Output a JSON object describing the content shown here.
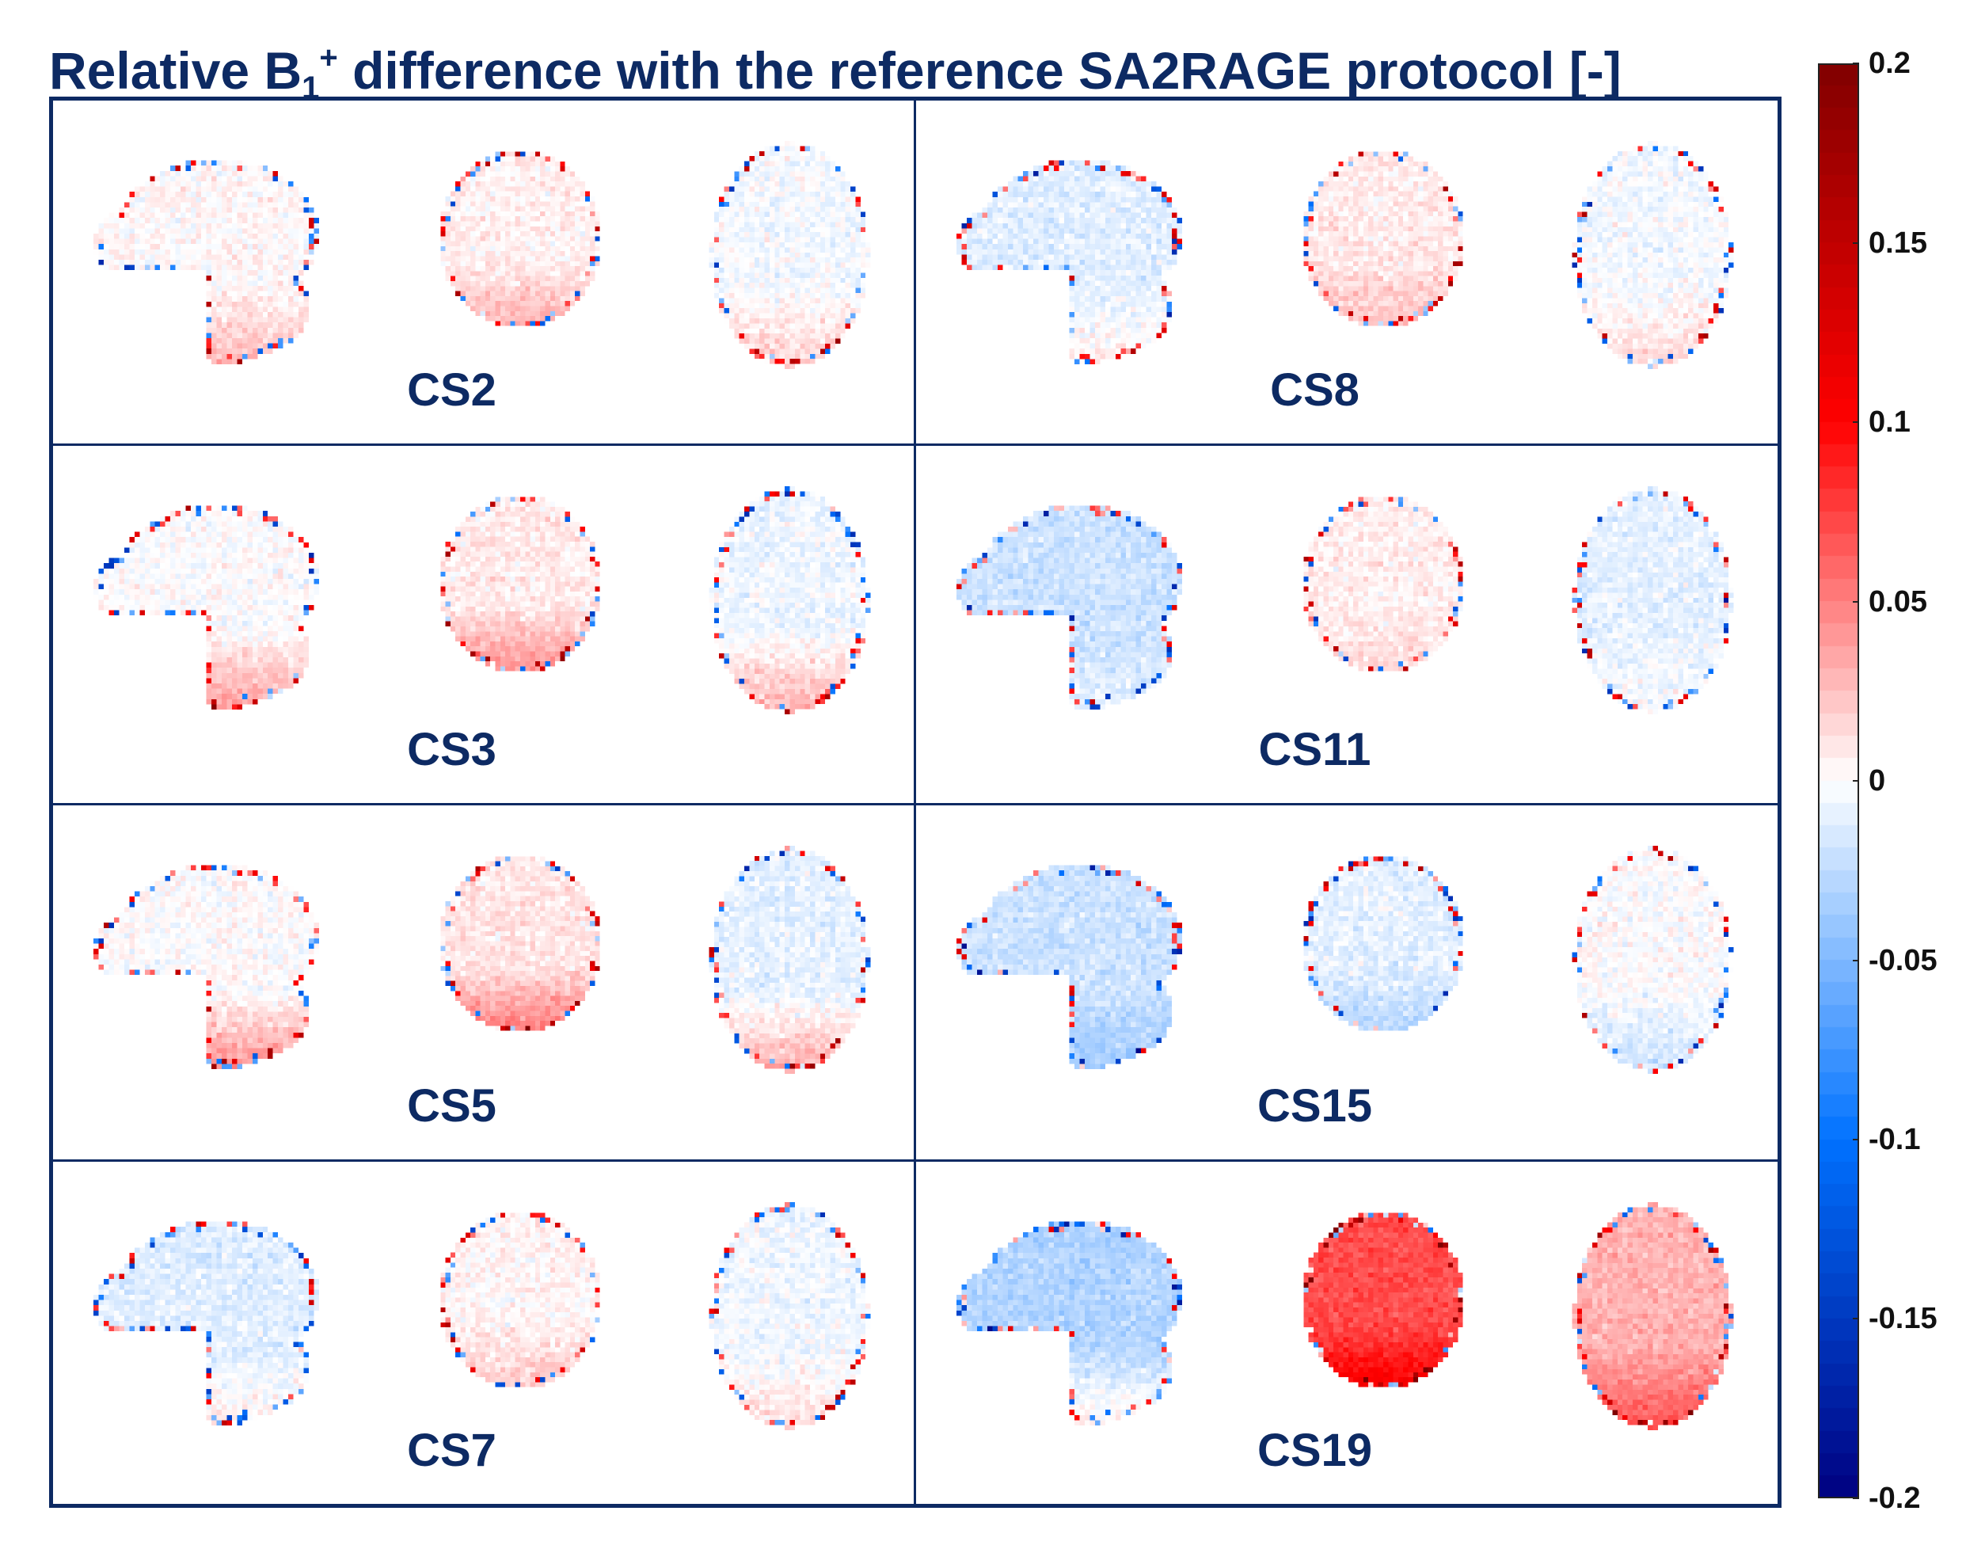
{
  "title": {
    "prefix": "Relative B",
    "subscript": "1",
    "superscript": "+",
    "suffix": " difference with the reference SA2RAGE protocol [-]"
  },
  "chart_data": {
    "type": "heatmap",
    "title": "Relative B1+ difference with the reference SA2RAGE protocol [-]",
    "description_views": [
      "sagittal",
      "coronal",
      "axial"
    ],
    "subjects": [
      {
        "name": "CS2",
        "column": 0,
        "row": 0,
        "bias": [
          0.002,
          0.006,
          -0.004
        ],
        "lower_region_shift": 0.025
      },
      {
        "name": "CS3",
        "column": 0,
        "row": 1,
        "bias": [
          0.0,
          0.008,
          -0.006
        ],
        "lower_region_shift": 0.04
      },
      {
        "name": "CS5",
        "column": 0,
        "row": 2,
        "bias": [
          0.0,
          0.01,
          -0.01
        ],
        "lower_region_shift": 0.045
      },
      {
        "name": "CS7",
        "column": 0,
        "row": 3,
        "bias": [
          -0.012,
          0.004,
          -0.006
        ],
        "lower_region_shift": 0.02
      },
      {
        "name": "CS8",
        "column": 1,
        "row": 0,
        "bias": [
          -0.012,
          0.008,
          -0.004
        ],
        "lower_region_shift": 0.02
      },
      {
        "name": "CS11",
        "column": 1,
        "row": 1,
        "bias": [
          -0.02,
          0.006,
          -0.01
        ],
        "lower_region_shift": 0.01
      },
      {
        "name": "CS15",
        "column": 1,
        "row": 2,
        "bias": [
          -0.02,
          -0.01,
          0.0
        ],
        "lower_region_shift": -0.02
      },
      {
        "name": "CS19",
        "column": 1,
        "row": 3,
        "bias": [
          -0.03,
          0.07,
          0.03
        ],
        "lower_region_shift": 0.04
      }
    ],
    "colorbar": {
      "min": -0.2,
      "max": 0.2,
      "colormap": "blue-white-red",
      "ticks": [
        {
          "value": 0.2,
          "label": "0.2"
        },
        {
          "value": 0.15,
          "label": "0.15"
        },
        {
          "value": 0.1,
          "label": "0.1"
        },
        {
          "value": 0.05,
          "label": "0.05"
        },
        {
          "value": 0,
          "label": "0"
        },
        {
          "value": -0.05,
          "label": "-0.05"
        },
        {
          "value": -0.1,
          "label": "-0.1"
        },
        {
          "value": -0.15,
          "label": "-0.15"
        },
        {
          "value": -0.2,
          "label": "-0.2"
        }
      ]
    }
  },
  "colors": {
    "frame": "#0d2a63",
    "negative_max": "#000080",
    "negative_mid": "#0072ff",
    "zero": "#ffffff",
    "positive_mid": "#ff0000",
    "positive_max": "#800000"
  }
}
